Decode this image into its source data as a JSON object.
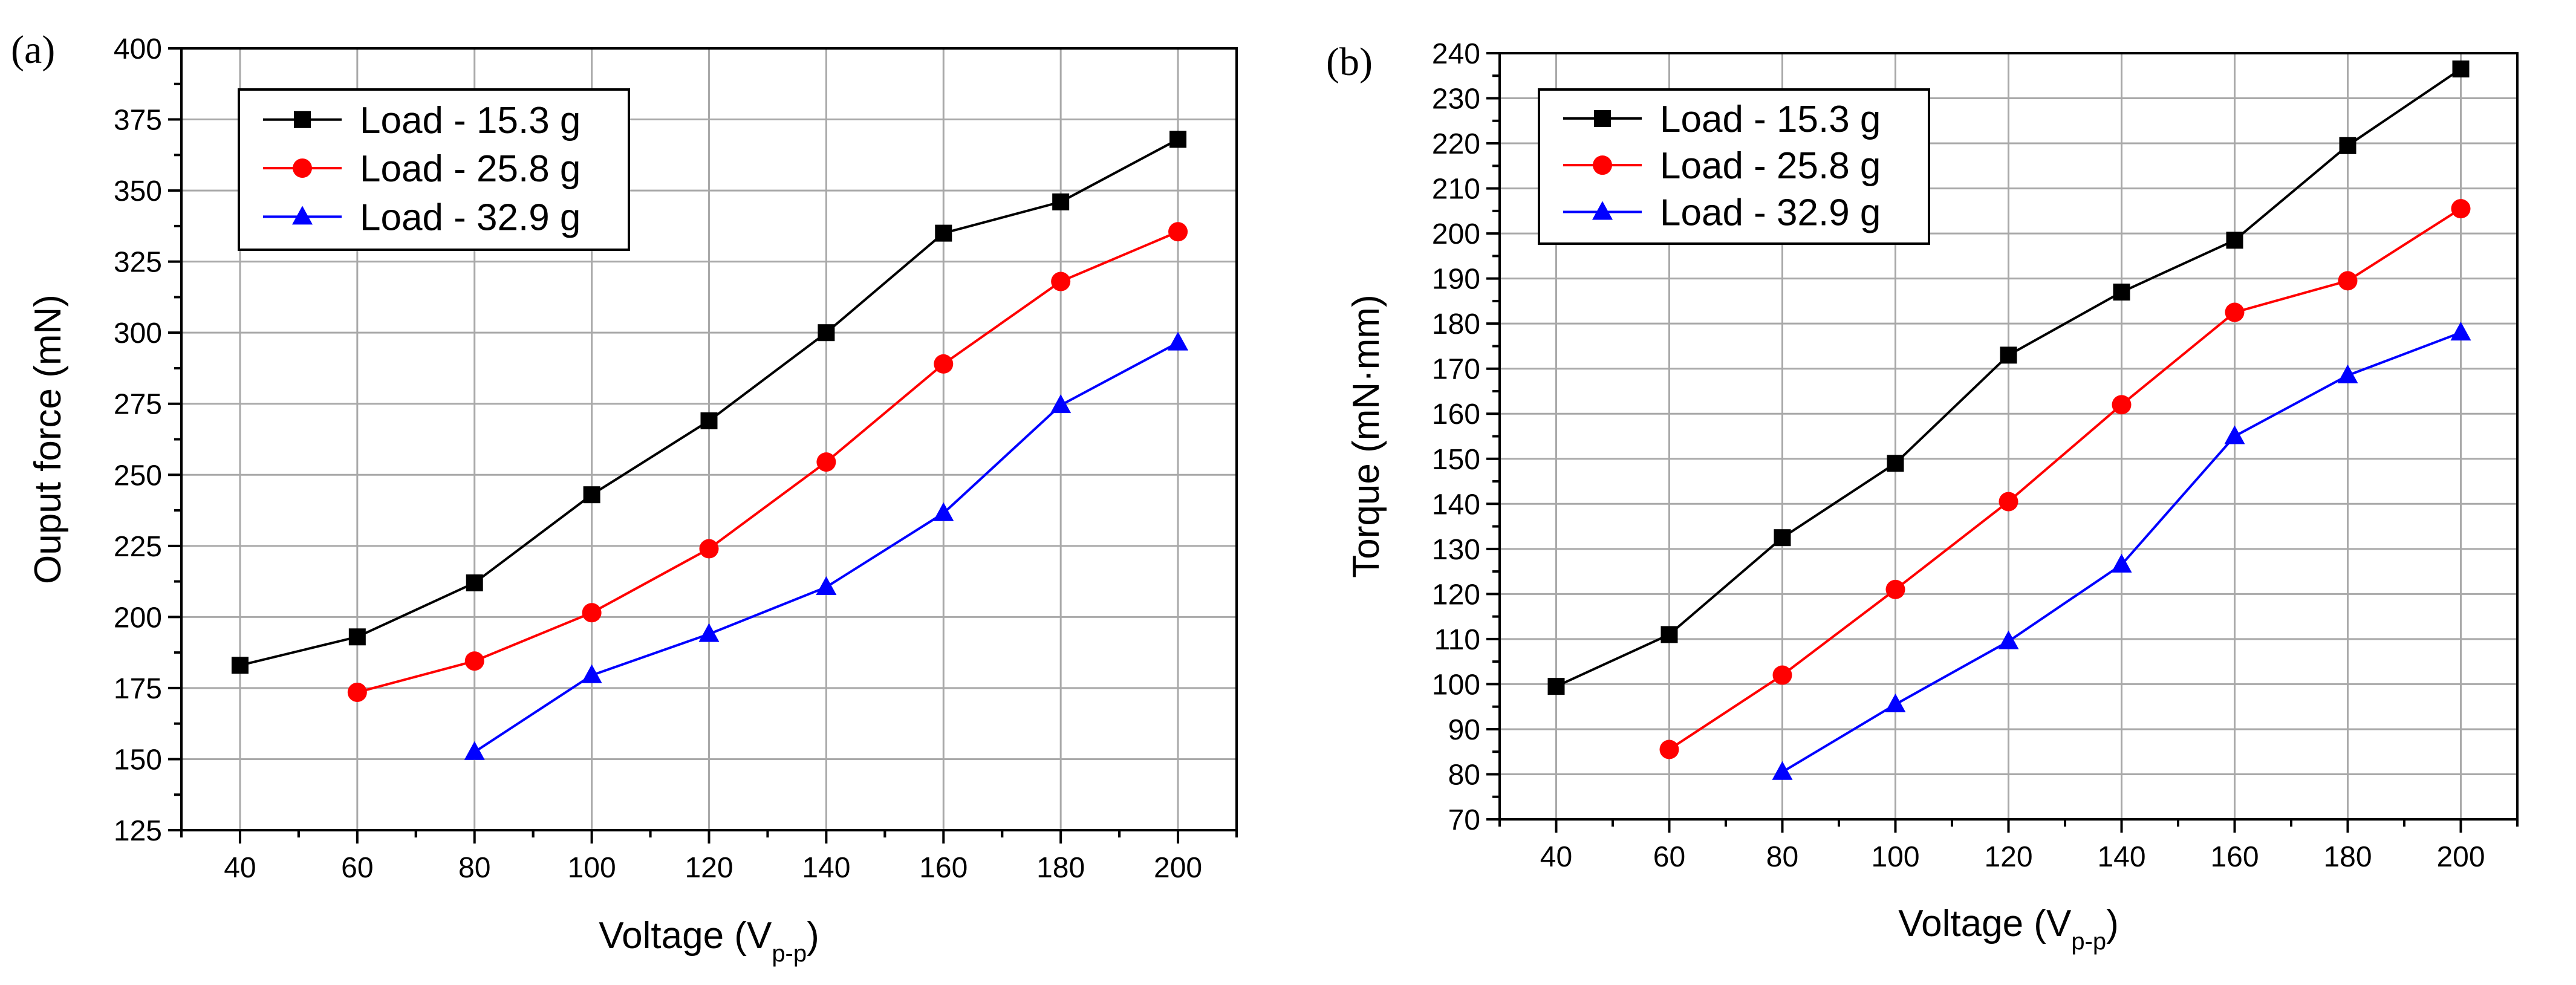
{
  "chart_data": [
    {
      "type": "line",
      "panel_label": "(a)",
      "title": "",
      "xlabel": "Voltage (V",
      "xlabel_sub": "p-p",
      "xlabel_close": ")",
      "ylabel": "Ouput force (mN)",
      "xlim": [
        30,
        210
      ],
      "ylim": [
        125,
        400
      ],
      "xticks": [
        40,
        60,
        80,
        100,
        120,
        140,
        160,
        180,
        200
      ],
      "yticks": [
        125,
        150,
        175,
        200,
        225,
        250,
        275,
        300,
        325,
        350,
        375,
        400
      ],
      "grid": true,
      "legend_position": "top-left",
      "series": [
        {
          "name": "Load - 15.3 g",
          "color": "#000000",
          "marker": "square",
          "x": [
            40,
            60,
            80,
            100,
            120,
            140,
            160,
            180,
            200
          ],
          "y": [
            183,
            193,
            212,
            243,
            269,
            300,
            335,
            346,
            368
          ]
        },
        {
          "name": "Load - 25.8 g",
          "color": "#ff0000",
          "marker": "circle",
          "x": [
            60,
            80,
            100,
            120,
            140,
            160,
            180,
            200
          ],
          "y": [
            173.5,
            184.5,
            201.5,
            224,
            254.5,
            289,
            318,
            335.5
          ]
        },
        {
          "name": "Load - 32.9 g",
          "color": "#0000ff",
          "marker": "triangle",
          "x": [
            80,
            100,
            120,
            140,
            160,
            180,
            200
          ],
          "y": [
            152.5,
            179.5,
            194,
            210.5,
            236.5,
            274.5,
            296.5
          ]
        }
      ]
    },
    {
      "type": "line",
      "panel_label": "(b)",
      "title": "",
      "xlabel": "Voltage (V",
      "xlabel_sub": "p-p",
      "xlabel_close": ")",
      "ylabel": "Torque (mN·mm)",
      "xlim": [
        30,
        210
      ],
      "ylim": [
        70,
        240
      ],
      "xticks": [
        40,
        60,
        80,
        100,
        120,
        140,
        160,
        180,
        200
      ],
      "yticks": [
        70,
        80,
        90,
        100,
        110,
        120,
        130,
        140,
        150,
        160,
        170,
        180,
        190,
        200,
        210,
        220,
        230,
        240
      ],
      "grid": true,
      "legend_position": "top-left",
      "series": [
        {
          "name": "Load - 15.3 g",
          "color": "#000000",
          "marker": "square",
          "x": [
            40,
            60,
            80,
            100,
            120,
            140,
            160,
            180,
            200
          ],
          "y": [
            99.5,
            111,
            132.5,
            149,
            173,
            187,
            198.5,
            219.5,
            236.5
          ]
        },
        {
          "name": "Load - 25.8 g",
          "color": "#ff0000",
          "marker": "circle",
          "x": [
            60,
            80,
            100,
            120,
            140,
            160,
            180,
            200
          ],
          "y": [
            85.5,
            102,
            121,
            140.5,
            162,
            182.5,
            189.5,
            205.5
          ]
        },
        {
          "name": "Load - 32.9 g",
          "color": "#0000ff",
          "marker": "triangle",
          "x": [
            80,
            100,
            120,
            140,
            160,
            180,
            200
          ],
          "y": [
            80.5,
            95.5,
            109.5,
            126.5,
            155,
            168.5,
            178
          ]
        }
      ]
    }
  ]
}
